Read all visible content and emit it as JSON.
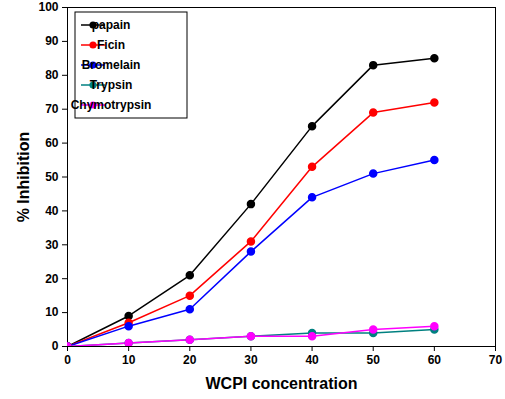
{
  "chart_data": {
    "type": "line",
    "x_label": "WCPI concentration",
    "y_label": "% Inhibition",
    "x": [
      0,
      10,
      20,
      30,
      40,
      50,
      60
    ],
    "series": [
      {
        "name": "papain",
        "color": "#000000",
        "values": [
          0,
          9,
          21,
          42,
          65,
          83,
          85
        ]
      },
      {
        "name": "Ficin",
        "color": "#ff0000",
        "values": [
          0,
          7,
          15,
          31,
          53,
          69,
          72
        ]
      },
      {
        "name": "Bromelain",
        "color": "#0000ff",
        "values": [
          0,
          6,
          11,
          28,
          44,
          51,
          55
        ]
      },
      {
        "name": "Trypsin",
        "color": "#008080",
        "values": [
          0,
          1,
          2,
          3,
          4,
          4,
          5
        ]
      },
      {
        "name": "Chymotrypsin",
        "color": "#ff00ff",
        "values": [
          0,
          1,
          2,
          3,
          3,
          5,
          6
        ]
      }
    ],
    "xlim": [
      0,
      70
    ],
    "xticks": [
      0,
      10,
      20,
      30,
      40,
      50,
      60,
      70
    ],
    "ylim": [
      0,
      100
    ],
    "yticks": [
      0,
      10,
      20,
      30,
      40,
      50,
      60,
      70,
      80,
      90,
      100
    ],
    "marker": "circle",
    "line_style": "solid",
    "legend": "upper left",
    "grid": false
  }
}
